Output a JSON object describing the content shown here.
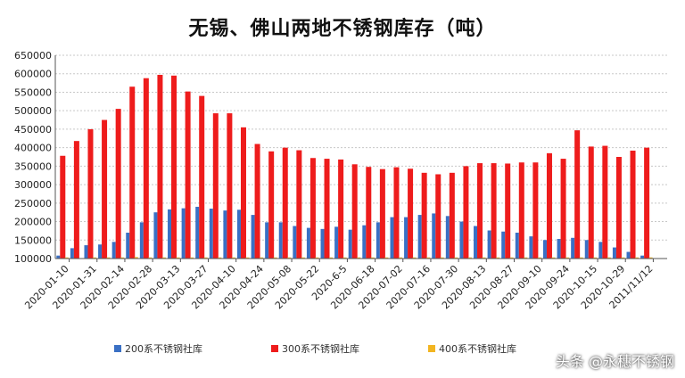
{
  "chart_data": {
    "type": "bar",
    "title": "无锡、佛山两地不锈钢库存（吨）",
    "ylim": [
      100000,
      650000
    ],
    "yticks": [
      100000,
      150000,
      200000,
      250000,
      300000,
      350000,
      400000,
      450000,
      500000,
      550000,
      600000,
      650000
    ],
    "grid": true,
    "legend_position": "bottom",
    "x_tick_labels": [
      "2020-01-10",
      "2020-01-31",
      "2020-02-14",
      "2020-02-28",
      "2020-03-13",
      "2020-03-27",
      "2020-04-10",
      "2020-04-24",
      "2020-05-08",
      "2020-05-22",
      "2020-6-5",
      "2020-06-18",
      "2020-07-02",
      "2020-07-16",
      "2020-07-30",
      "2020-08-13",
      "2020-08-27",
      "2020-09-10",
      "2020-09-24",
      "2020-10-15",
      "2020-10-29",
      "2011/11/12"
    ],
    "series": [
      {
        "name": "200系不锈钢社库",
        "color": "#3a70c4",
        "values": [
          108000,
          128000,
          136000,
          138000,
          145000,
          170000,
          198000,
          225000,
          233000,
          236000,
          240000,
          235000,
          230000,
          232000,
          218000,
          198000,
          198000,
          188000,
          183000,
          180000,
          186000,
          178000,
          190000,
          198000,
          212000,
          212000,
          218000,
          222000,
          215000,
          200000,
          188000,
          176000,
          173000,
          170000,
          160000,
          150000,
          153000,
          156000,
          150000,
          145000,
          130000,
          118000,
          108000,
          null
        ]
      },
      {
        "name": "300系不锈钢社库",
        "color": "#ee1c1c",
        "values": [
          378000,
          418000,
          450000,
          475000,
          505000,
          565000,
          588000,
          597000,
          595000,
          552000,
          540000,
          493000,
          493000,
          455000,
          410000,
          390000,
          400000,
          393000,
          372000,
          370000,
          368000,
          355000,
          348000,
          342000,
          347000,
          343000,
          332000,
          328000,
          332000,
          350000,
          358000,
          358000,
          357000,
          360000,
          360000,
          385000,
          370000,
          447000,
          403000,
          405000,
          375000,
          392000,
          400000,
          null
        ]
      },
      {
        "name": "400系不锈钢社库",
        "color": "#f2b521",
        "values": [
          103000,
          101000,
          103000,
          103000,
          103000,
          104000,
          103000,
          103000,
          103000,
          103000,
          103000,
          103000,
          103000,
          103000,
          103000,
          103000,
          103000,
          103000,
          103000,
          103000,
          103000,
          103000,
          103000,
          103000,
          103000,
          103000,
          103000,
          103000,
          103000,
          103000,
          103000,
          103000,
          103000,
          103000,
          103000,
          103000,
          103000,
          103000,
          103000,
          103000,
          103000,
          103000,
          103000,
          null
        ]
      }
    ]
  },
  "watermark": "头条 @永穗不锈钢"
}
